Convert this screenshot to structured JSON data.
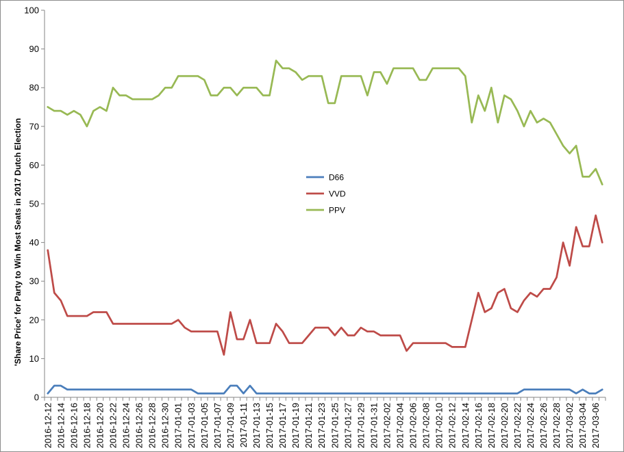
{
  "chart_data": {
    "type": "line",
    "title": "",
    "xlabel": "",
    "ylabel": "'Share Price' for Party to Win Most Seats in 2017 Dutch Election",
    "ylim": [
      0,
      100
    ],
    "yticks": [
      0,
      10,
      20,
      30,
      40,
      50,
      60,
      70,
      80,
      90,
      100
    ],
    "grid": false,
    "legend_position": "center",
    "x": [
      "2016-12-12",
      "2016-12-13",
      "2016-12-14",
      "2016-12-15",
      "2016-12-16",
      "2016-12-17",
      "2016-12-18",
      "2016-12-19",
      "2016-12-20",
      "2016-12-21",
      "2016-12-22",
      "2016-12-23",
      "2016-12-24",
      "2016-12-25",
      "2016-12-26",
      "2016-12-27",
      "2016-12-28",
      "2016-12-29",
      "2016-12-30",
      "2016-12-31",
      "2017-01-01",
      "2017-01-02",
      "2017-01-03",
      "2017-01-04",
      "2017-01-05",
      "2017-01-06",
      "2017-01-07",
      "2017-01-08",
      "2017-01-09",
      "2017-01-10",
      "2017-01-11",
      "2017-01-12",
      "2017-01-13",
      "2017-01-14",
      "2017-01-15",
      "2017-01-16",
      "2017-01-17",
      "2017-01-18",
      "2017-01-19",
      "2017-01-20",
      "2017-01-21",
      "2017-01-22",
      "2017-01-23",
      "2017-01-24",
      "2017-01-25",
      "2017-01-26",
      "2017-01-27",
      "2017-01-28",
      "2017-01-29",
      "2017-01-30",
      "2017-01-31",
      "2017-02-01",
      "2017-02-02",
      "2017-02-03",
      "2017-02-04",
      "2017-02-05",
      "2017-02-06",
      "2017-02-07",
      "2017-02-08",
      "2017-02-09",
      "2017-02-10",
      "2017-02-11",
      "2017-02-12",
      "2017-02-13",
      "2017-02-14",
      "2017-02-15",
      "2017-02-16",
      "2017-02-17",
      "2017-02-18",
      "2017-02-19",
      "2017-02-20",
      "2017-02-21",
      "2017-02-22",
      "2017-02-23",
      "2017-02-24",
      "2017-02-25",
      "2017-02-26",
      "2017-02-27",
      "2017-02-28",
      "2017-03-01",
      "2017-03-02",
      "2017-03-03",
      "2017-03-04",
      "2017-03-05",
      "2017-03-06",
      "2017-03-07"
    ],
    "x_tick_labels": [
      "2016-12-12",
      "2016-12-14",
      "2016-12-16",
      "2016-12-18",
      "2016-12-20",
      "2016-12-22",
      "2016-12-24",
      "2016-12-26",
      "2016-12-28",
      "2016-12-30",
      "2017-01-01",
      "2017-01-03",
      "2017-01-05",
      "2017-01-07",
      "2017-01-09",
      "2017-01-11",
      "2017-01-13",
      "2017-01-15",
      "2017-01-17",
      "2017-01-19",
      "2017-01-21",
      "2017-01-23",
      "2017-01-25",
      "2017-01-27",
      "2017-01-29",
      "2017-01-31",
      "2017-02-02",
      "2017-02-04",
      "2017-02-06",
      "2017-02-08",
      "2017-02-10",
      "2017-02-12",
      "2017-02-14",
      "2017-02-16",
      "2017-02-18",
      "2017-02-20",
      "2017-02-22",
      "2017-02-24",
      "2017-02-26",
      "2017-02-28",
      "2017-03-02",
      "2017-03-04",
      "2017-03-06"
    ],
    "series": [
      {
        "name": "D66",
        "color": "#4a7ebb",
        "values": [
          1,
          3,
          3,
          2,
          2,
          2,
          2,
          2,
          2,
          2,
          2,
          2,
          2,
          2,
          2,
          2,
          2,
          2,
          2,
          2,
          2,
          2,
          2,
          1,
          1,
          1,
          1,
          1,
          3,
          3,
          1,
          3,
          1,
          1,
          1,
          1,
          1,
          1,
          1,
          1,
          1,
          1,
          1,
          1,
          1,
          1,
          1,
          1,
          1,
          1,
          1,
          1,
          1,
          1,
          1,
          1,
          1,
          1,
          1,
          1,
          1,
          1,
          1,
          1,
          1,
          1,
          1,
          1,
          1,
          1,
          1,
          1,
          1,
          2,
          2,
          2,
          2,
          2,
          2,
          2,
          2,
          1,
          2,
          1,
          1,
          2
        ]
      },
      {
        "name": "VVD",
        "color": "#be4b48",
        "values": [
          38,
          27,
          25,
          21,
          21,
          21,
          21,
          22,
          22,
          22,
          19,
          19,
          19,
          19,
          19,
          19,
          19,
          19,
          19,
          19,
          20,
          18,
          17,
          17,
          17,
          17,
          17,
          11,
          22,
          15,
          15,
          20,
          14,
          14,
          14,
          19,
          17,
          14,
          14,
          14,
          16,
          18,
          18,
          18,
          16,
          18,
          16,
          16,
          18,
          17,
          17,
          16,
          16,
          16,
          16,
          12,
          14,
          14,
          14,
          14,
          14,
          14,
          13,
          13,
          13,
          20,
          27,
          22,
          23,
          27,
          28,
          23,
          22,
          25,
          27,
          26,
          28,
          28,
          31,
          40,
          34,
          44,
          39,
          39,
          47,
          40
        ]
      },
      {
        "name": "PPV",
        "color": "#98b954",
        "values": [
          75,
          74,
          74,
          73,
          74,
          73,
          70,
          74,
          75,
          74,
          80,
          78,
          78,
          77,
          77,
          77,
          77,
          78,
          80,
          80,
          83,
          83,
          83,
          83,
          82,
          78,
          78,
          80,
          80,
          78,
          80,
          80,
          80,
          78,
          78,
          87,
          85,
          85,
          84,
          82,
          83,
          83,
          83,
          76,
          76,
          83,
          83,
          83,
          83,
          78,
          84,
          84,
          81,
          85,
          85,
          85,
          85,
          82,
          82,
          85,
          85,
          85,
          85,
          85,
          83,
          71,
          78,
          74,
          80,
          71,
          78,
          77,
          74,
          70,
          74,
          71,
          72,
          71,
          68,
          65,
          63,
          65,
          57,
          57,
          59,
          55
        ]
      }
    ]
  }
}
